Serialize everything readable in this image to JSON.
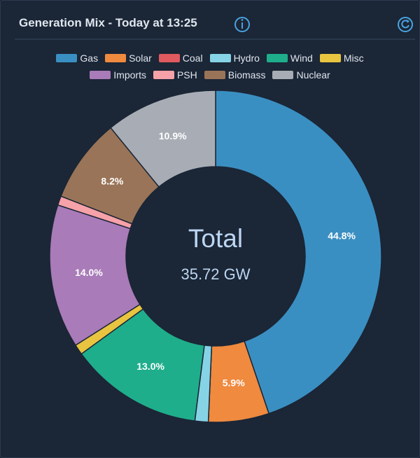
{
  "chart_data": {
    "type": "donut",
    "title": "Generation Mix - Today at 13:25",
    "categories": [
      "Gas",
      "Solar",
      "Coal",
      "Hydro",
      "Wind",
      "Misc",
      "Imports",
      "PSH",
      "Biomass",
      "Nuclear"
    ],
    "values": [
      44.8,
      5.9,
      0,
      1.3,
      13.0,
      1.0,
      14.0,
      0.9,
      8.2,
      10.9
    ],
    "value_labels": [
      "44.8%",
      "5.9%",
      null,
      null,
      "13.0%",
      null,
      "14.0%",
      null,
      "8.2%",
      "10.9%"
    ],
    "colors": [
      "#3a8fc2",
      "#ef8a3f",
      "#e05a5f",
      "#86d3e6",
      "#1fae8c",
      "#e8c440",
      "#a97bb8",
      "#f7a1a8",
      "#9a7458",
      "#a8adb5"
    ],
    "center_title": "Total",
    "center_value": "35.72 GW"
  }
}
